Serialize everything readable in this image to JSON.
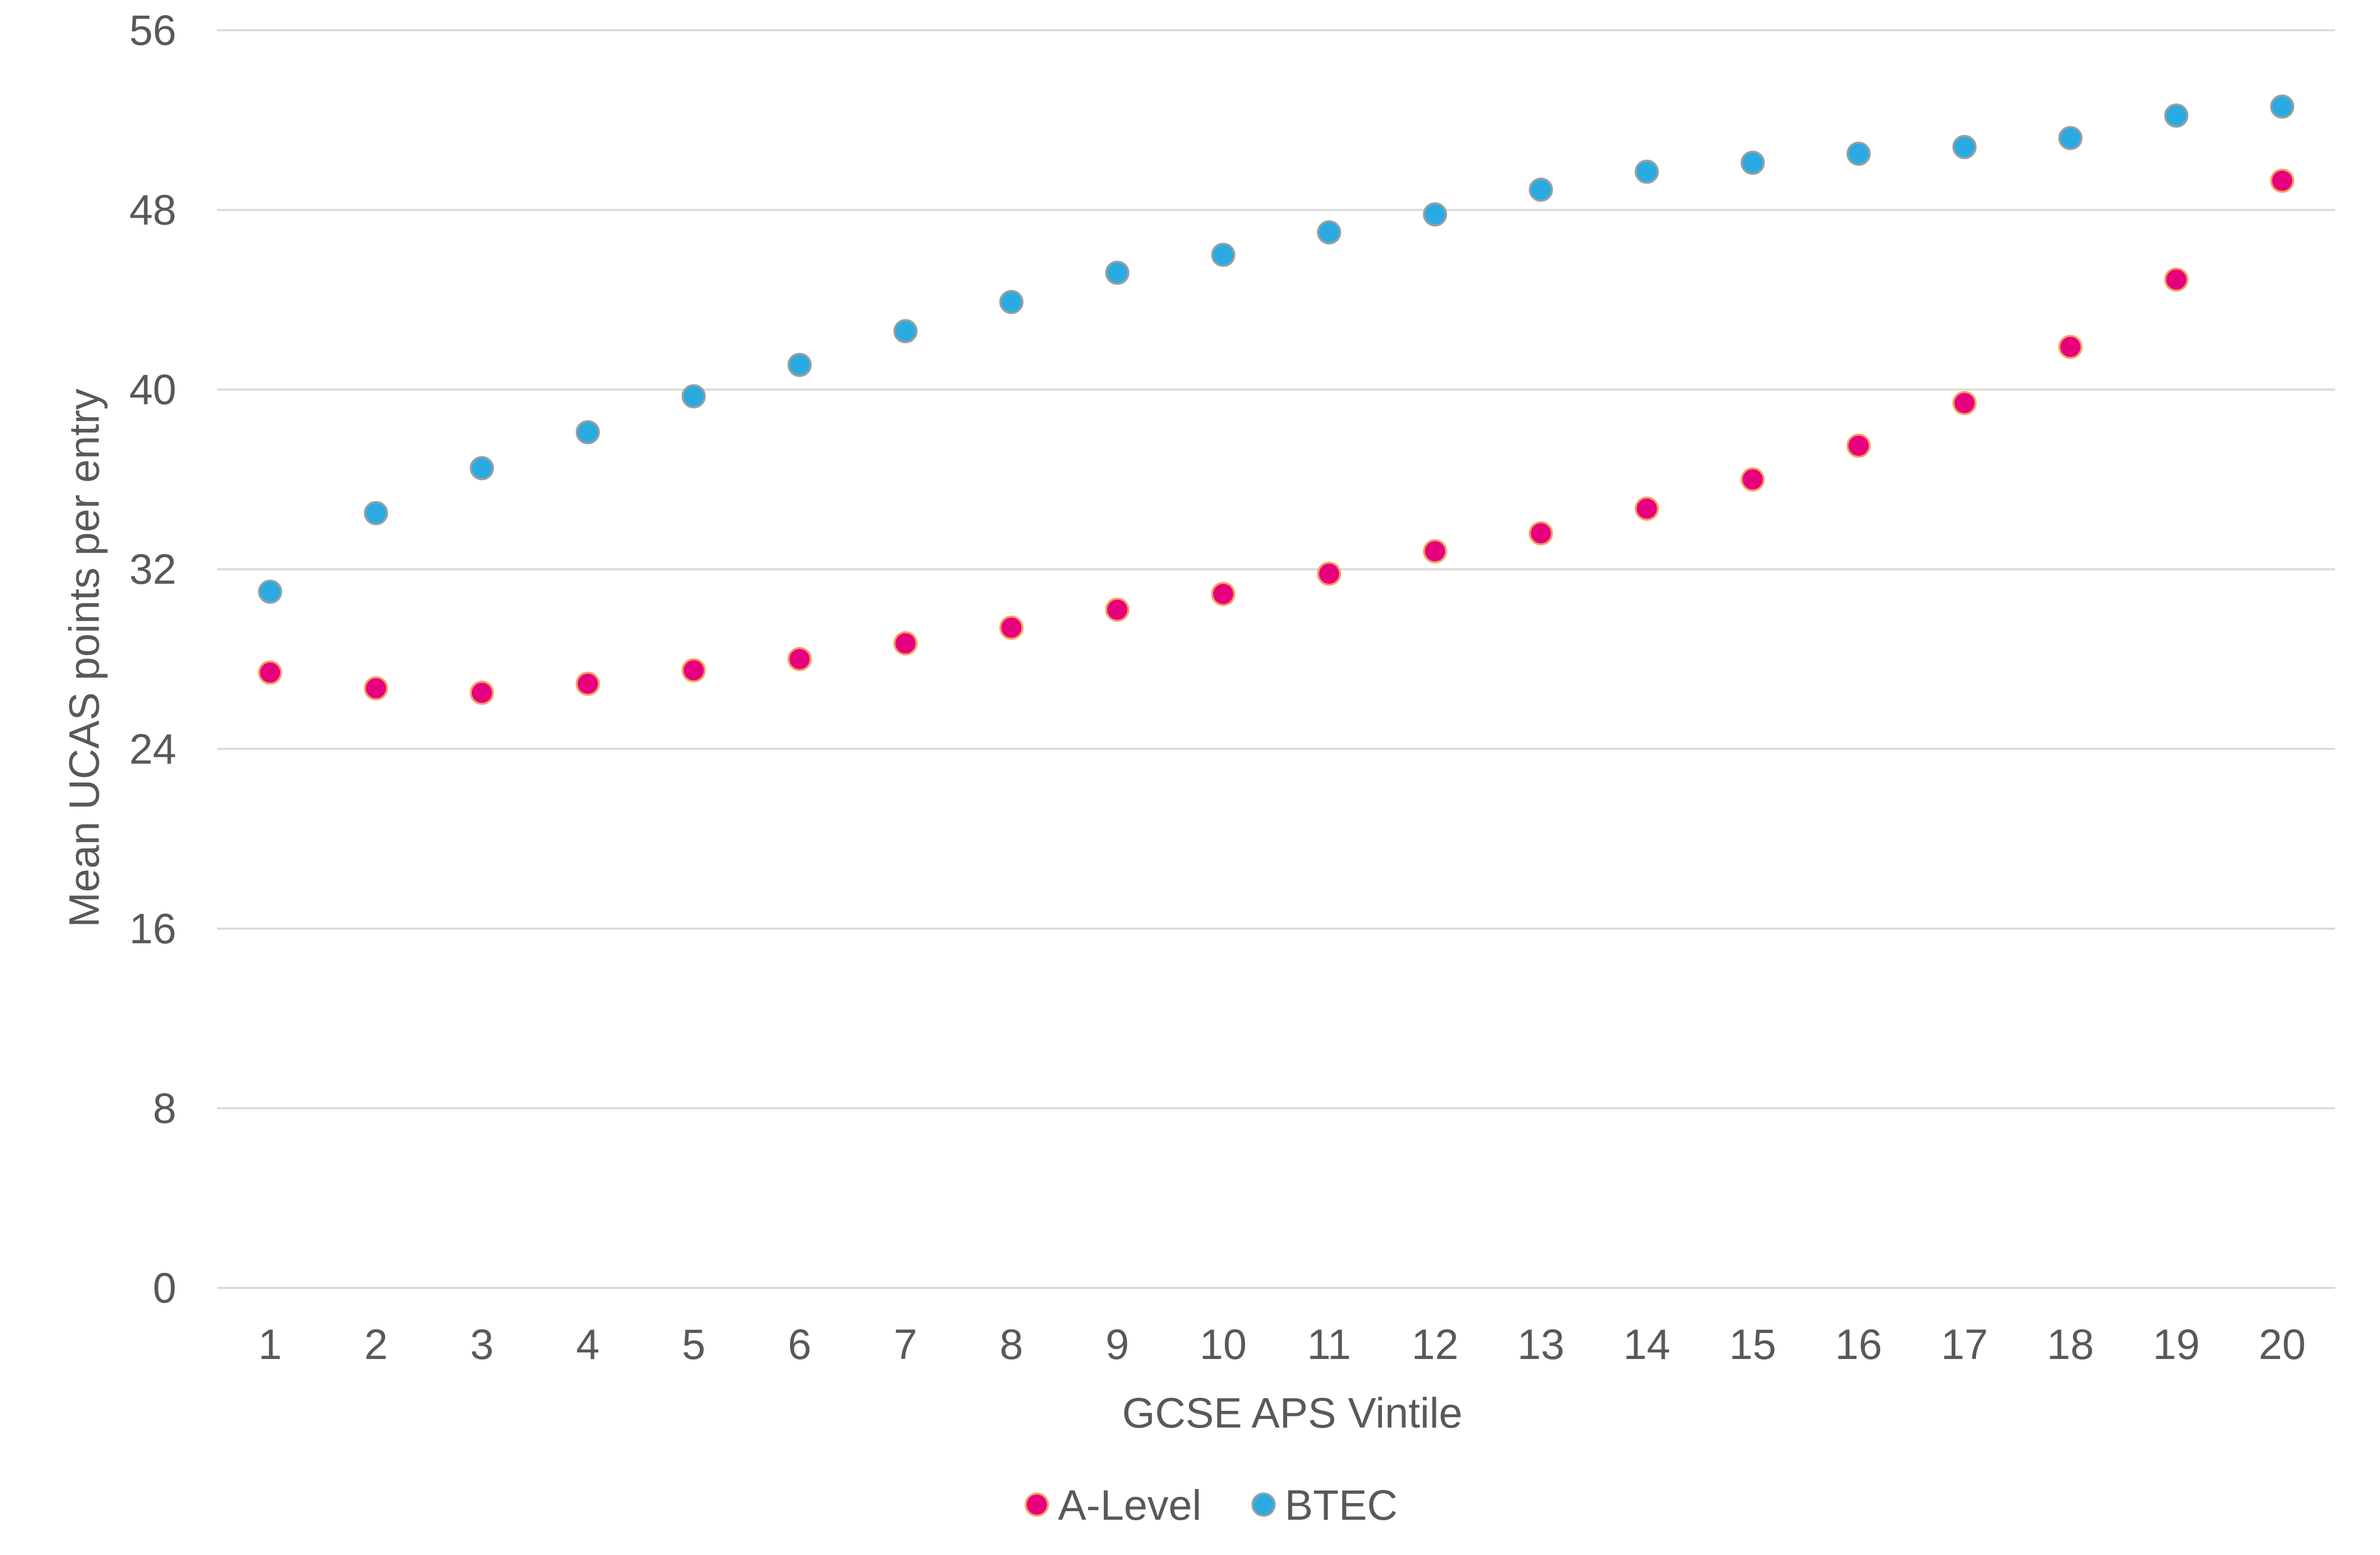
{
  "chart_data": {
    "type": "scatter",
    "xlabel": "GCSE APS Vintile",
    "ylabel": "Mean UCAS points per entry",
    "x": [
      1,
      2,
      3,
      4,
      5,
      6,
      7,
      8,
      9,
      10,
      11,
      12,
      13,
      14,
      15,
      16,
      17,
      18,
      19,
      20
    ],
    "xlim": [
      0.5,
      20.5
    ],
    "ylim": [
      0,
      56
    ],
    "yticks": [
      0,
      8,
      16,
      24,
      32,
      40,
      48,
      56
    ],
    "xticks": [
      1,
      2,
      3,
      4,
      5,
      6,
      7,
      8,
      9,
      10,
      11,
      12,
      13,
      14,
      15,
      16,
      17,
      18,
      19,
      20
    ],
    "grid": "horizontal",
    "legend_position": "bottom",
    "series": [
      {
        "name": "A-Level",
        "color": "#e6007e",
        "edge_color": "#f4a261",
        "values": [
          27.4,
          26.7,
          26.5,
          26.9,
          27.5,
          28.0,
          28.7,
          29.4,
          30.2,
          30.9,
          31.8,
          32.8,
          33.6,
          34.7,
          36.0,
          37.5,
          39.4,
          41.9,
          44.9,
          49.3
        ]
      },
      {
        "name": "BTEC",
        "color": "#29abe2",
        "edge_color": "#9e9e9e",
        "values": [
          31.0,
          34.5,
          36.5,
          38.1,
          39.7,
          41.1,
          42.6,
          43.9,
          45.2,
          46.0,
          47.0,
          47.8,
          48.9,
          49.7,
          50.1,
          50.5,
          50.8,
          51.2,
          52.2,
          52.6
        ]
      }
    ]
  }
}
